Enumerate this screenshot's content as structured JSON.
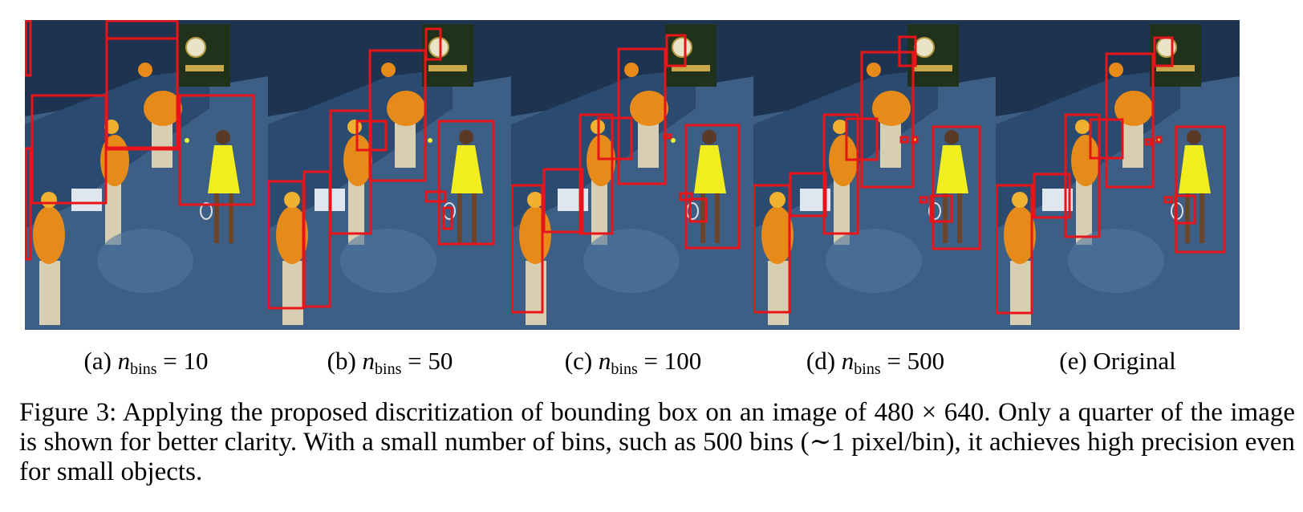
{
  "figure": {
    "panels": [
      {
        "label": "(a) ",
        "var": "n",
        "sub": "bins",
        "rel": " = 10"
      },
      {
        "label": "(b) ",
        "var": "n",
        "sub": "bins",
        "rel": " = 50"
      },
      {
        "label": "(c) ",
        "var": "n",
        "sub": "bins",
        "rel": " = 100"
      },
      {
        "label": "(d) ",
        "var": "n",
        "sub": "bins",
        "rel": " = 500"
      },
      {
        "label": "(e) Original",
        "var": "",
        "sub": "",
        "rel": ""
      }
    ],
    "caption": {
      "text": "Figure 3:  Applying the proposed discritization of bounding box on an image of 480 × 640. Only a quarter of the image is shown for better clarity. With a small number of bins, such as 500 bins (∼1 pixel/bin), it achieves high precision even for small objects."
    }
  },
  "colors": {
    "box": "#e8141a",
    "court": "#3d5f86",
    "wall": "#1e3350",
    "shirt": "#e68a1a",
    "dress": "#f2ee1e"
  }
}
